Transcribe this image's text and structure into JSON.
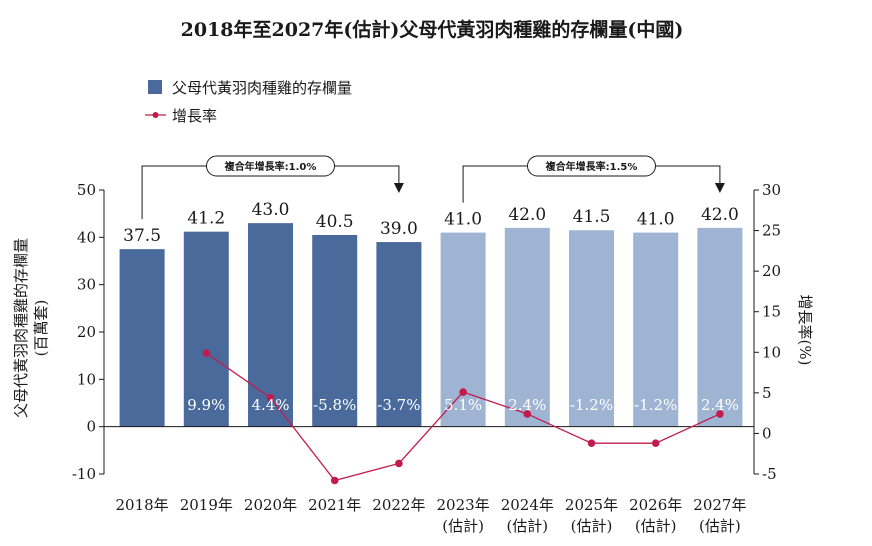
{
  "chart_data": {
    "type": "bar",
    "title": "2018年至2027年(估計)父母代黃羽肉種雞的存欄量(中國)",
    "categories": [
      "2018年",
      "2019年",
      "2020年",
      "2021年",
      "2022年",
      "2023年\n(估計)",
      "2024年\n(估計)",
      "2025年\n(估計)",
      "2026年\n(估計)",
      "2027年\n(估計)"
    ],
    "series": [
      {
        "name": "父母代黃羽肉種雞的存欄量",
        "type": "bar",
        "axis": "left",
        "values": [
          37.5,
          41.2,
          43.0,
          40.5,
          39.0,
          41.0,
          42.0,
          41.5,
          41.0,
          42.0
        ],
        "labels": [
          "37.5",
          "41.2",
          "43.0",
          "40.5",
          "39.0",
          "41.0",
          "42.0",
          "41.5",
          "41.0",
          "42.0"
        ],
        "estimated_from_index": 5
      },
      {
        "name": "增長率",
        "type": "line",
        "axis": "right",
        "values": [
          null,
          9.9,
          4.4,
          -5.8,
          -3.7,
          5.1,
          2.4,
          -1.2,
          -1.2,
          2.4
        ],
        "labels": [
          "",
          "9.9%",
          "4.4%",
          "-5.8%",
          "-3.7%",
          "5.1%",
          "2.4%",
          "-1.2%",
          "-1.2%",
          "2.4%"
        ]
      }
    ],
    "ylabel_left": "父母代黃羽肉種雞的存欄量",
    "ylabel_left_unit": "(百萬套)",
    "ylabel_right": "增長率(%)",
    "ylim_left": [
      -10,
      50
    ],
    "yticks_left": [
      -10,
      0,
      10,
      20,
      30,
      40,
      50
    ],
    "ylim_right": [
      -5,
      30
    ],
    "yticks_right": [
      -5,
      0,
      5,
      10,
      15,
      20,
      25,
      30
    ],
    "grid": false,
    "legend_position": "top-left",
    "annotations": [
      {
        "text": "複合年增長率:1.0%",
        "from_category": 0,
        "to_category": 4
      },
      {
        "text": "複合年增長率:1.5%",
        "from_category": 5,
        "to_category": 9
      }
    ],
    "colors": {
      "bar_actual": "#4a6a9c",
      "bar_estimated": "#9fb4d3",
      "line": "#c21c4c"
    }
  }
}
